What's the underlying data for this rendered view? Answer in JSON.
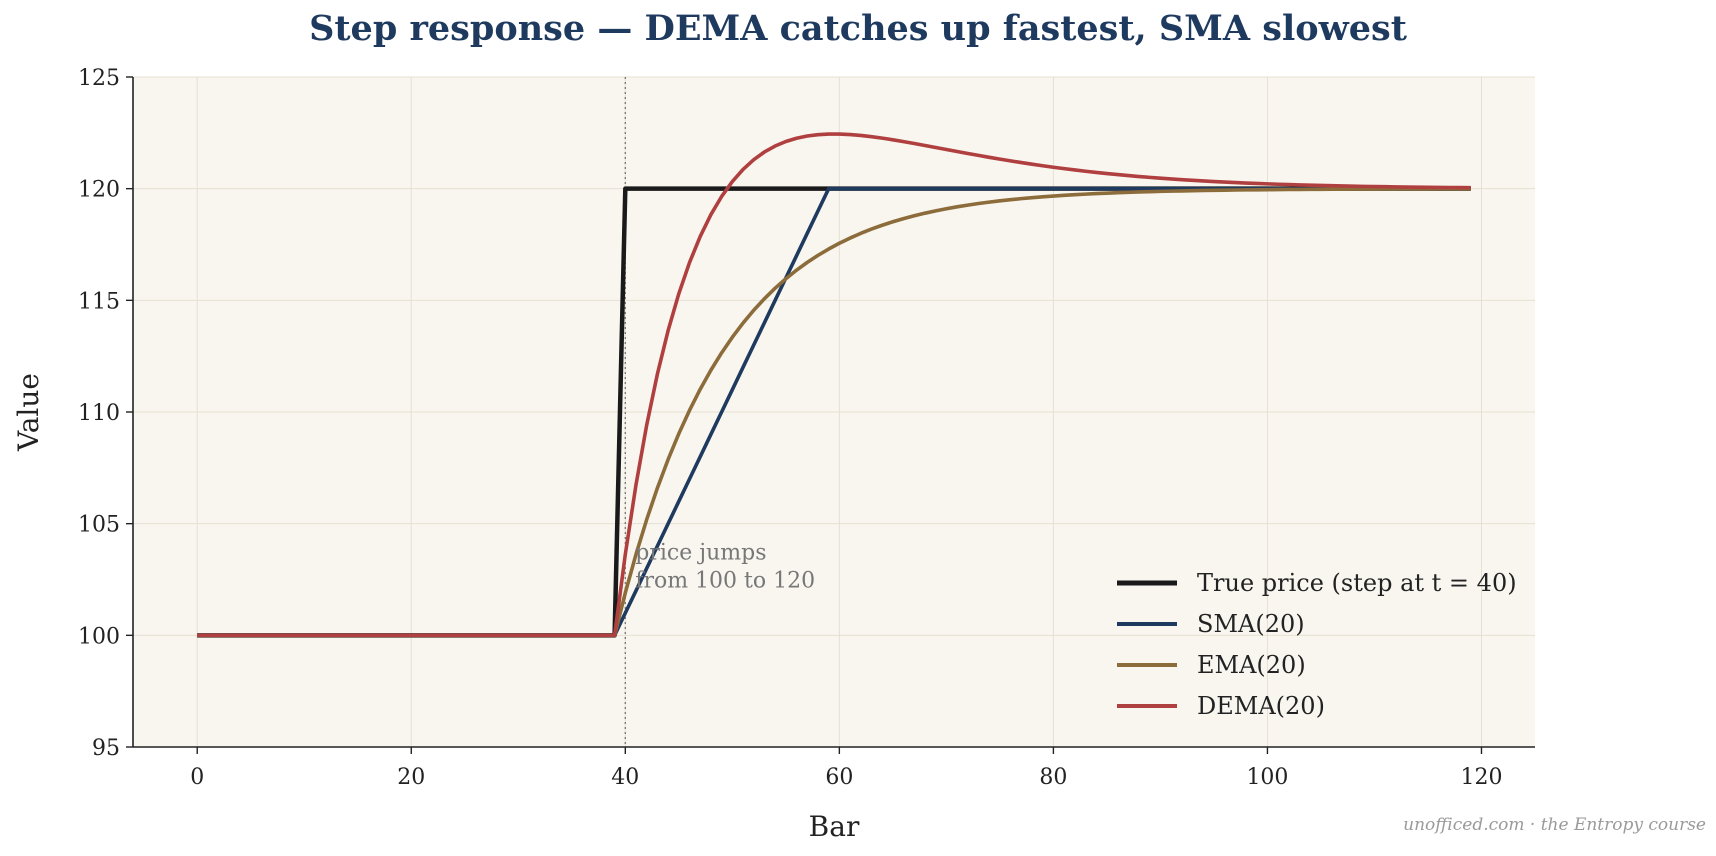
{
  "chart_data": {
    "type": "line",
    "title": "Step response — DEMA catches up fastest, SMA slowest",
    "xlabel": "Bar",
    "ylabel": "Value",
    "xlim": [
      -6,
      125
    ],
    "ylim": [
      95,
      125
    ],
    "xticks": [
      0,
      20,
      40,
      60,
      80,
      100,
      120
    ],
    "yticks": [
      95,
      100,
      105,
      110,
      115,
      120,
      125
    ],
    "grid": true,
    "background": "#f9f6f0",
    "legend_position": "lower-right",
    "step": {
      "t": 40,
      "from": 100,
      "to": 120,
      "period": 20,
      "start": 0,
      "end": 119
    },
    "annotation": {
      "lines": [
        "price jumps",
        "from 100 to 120"
      ],
      "x": 40
    },
    "series": [
      {
        "name": "True price (step at t = 40)",
        "color": "#1a1a1a",
        "kind": "step"
      },
      {
        "name": "SMA(20)",
        "color": "#1f3a5f",
        "kind": "sma"
      },
      {
        "name": "EMA(20)",
        "color": "#8b6c3a",
        "kind": "ema"
      },
      {
        "name": "DEMA(20)",
        "color": "#b04040",
        "kind": "dema"
      }
    ]
  },
  "watermark": "unofficed.com · the Entropy course"
}
